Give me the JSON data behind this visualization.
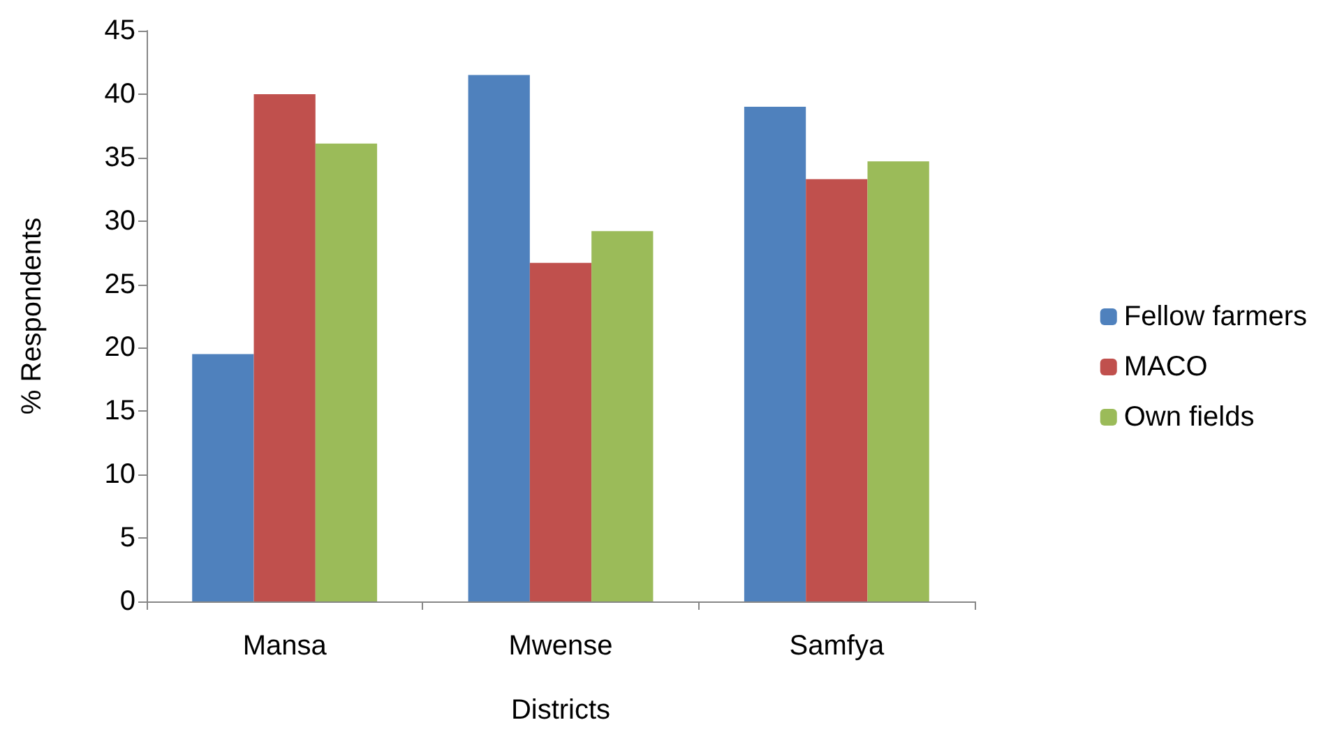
{
  "chart_data": {
    "type": "bar",
    "xlabel": "Districts",
    "ylabel": "% Respondents",
    "categories": [
      "Mansa",
      "Mwense",
      "Samfya"
    ],
    "series": [
      {
        "name": "Fellow farmers",
        "color": "#4f81bd",
        "values": [
          19.5,
          41.5,
          39.0
        ]
      },
      {
        "name": "MACO",
        "color": "#c0504d",
        "values": [
          40.0,
          26.7,
          33.3
        ]
      },
      {
        "name": "Own fields",
        "color": "#9bbb59",
        "values": [
          36.1,
          29.2,
          34.7
        ]
      }
    ],
    "ylim": [
      0,
      45
    ],
    "yticks": [
      0,
      5,
      10,
      15,
      20,
      25,
      30,
      35,
      40,
      45
    ],
    "grid": false,
    "legend": "right"
  }
}
